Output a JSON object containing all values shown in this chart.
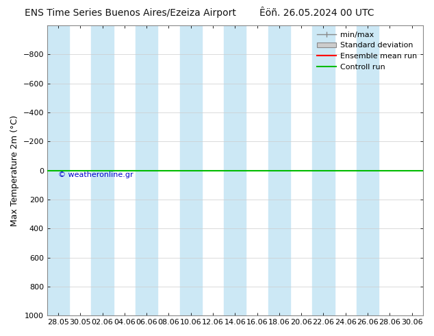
{
  "title": "ENS Time Series Buenos Aires/Ezeiza Airport",
  "title_right": "Êöñ. 26.05.2024 00 UTC",
  "ylabel": "Max Temperature 2m (°C)",
  "background_color": "#ffffff",
  "plot_bg_color": "#ffffff",
  "ylim_bottom": 1000,
  "ylim_top": -1000,
  "yticks": [
    -800,
    -600,
    -400,
    -200,
    0,
    200,
    400,
    600,
    800,
    1000
  ],
  "xlim": [
    0,
    34
  ],
  "stripe_spans": [
    [
      0.0,
      2.0
    ],
    [
      4.0,
      6.0
    ],
    [
      8.0,
      10.0
    ],
    [
      12.0,
      14.0
    ],
    [
      16.0,
      18.0
    ],
    [
      20.0,
      22.0
    ],
    [
      24.0,
      26.0
    ],
    [
      28.0,
      30.0
    ]
  ],
  "stripe_color": "#cce8f5",
  "x_tick_labels": [
    "28.05",
    "30.05",
    "02.06",
    "04.06",
    "06.06",
    "08.06",
    "10.06",
    "12.06",
    "14.06",
    "16.06",
    "18.06",
    "20.06",
    "22.06",
    "24.06",
    "26.06",
    "28.06",
    "30.06"
  ],
  "x_tick_positions": [
    1,
    3,
    5,
    7,
    9,
    11,
    13,
    15,
    17,
    19,
    21,
    23,
    25,
    27,
    29,
    31,
    33
  ],
  "green_line_y": 0,
  "red_line_y": 0,
  "green_color": "#00bb00",
  "red_color": "#ff0000",
  "copyright_text": "© weatheronline.gr",
  "copyright_color": "#0000cc",
  "copyright_x": 1.0,
  "copyright_y": 30,
  "legend_labels": [
    "min/max",
    "Standard deviation",
    "Ensemble mean run",
    "Controll run"
  ],
  "title_fontsize": 10,
  "axis_label_fontsize": 9,
  "tick_fontsize": 8,
  "legend_fontsize": 8
}
